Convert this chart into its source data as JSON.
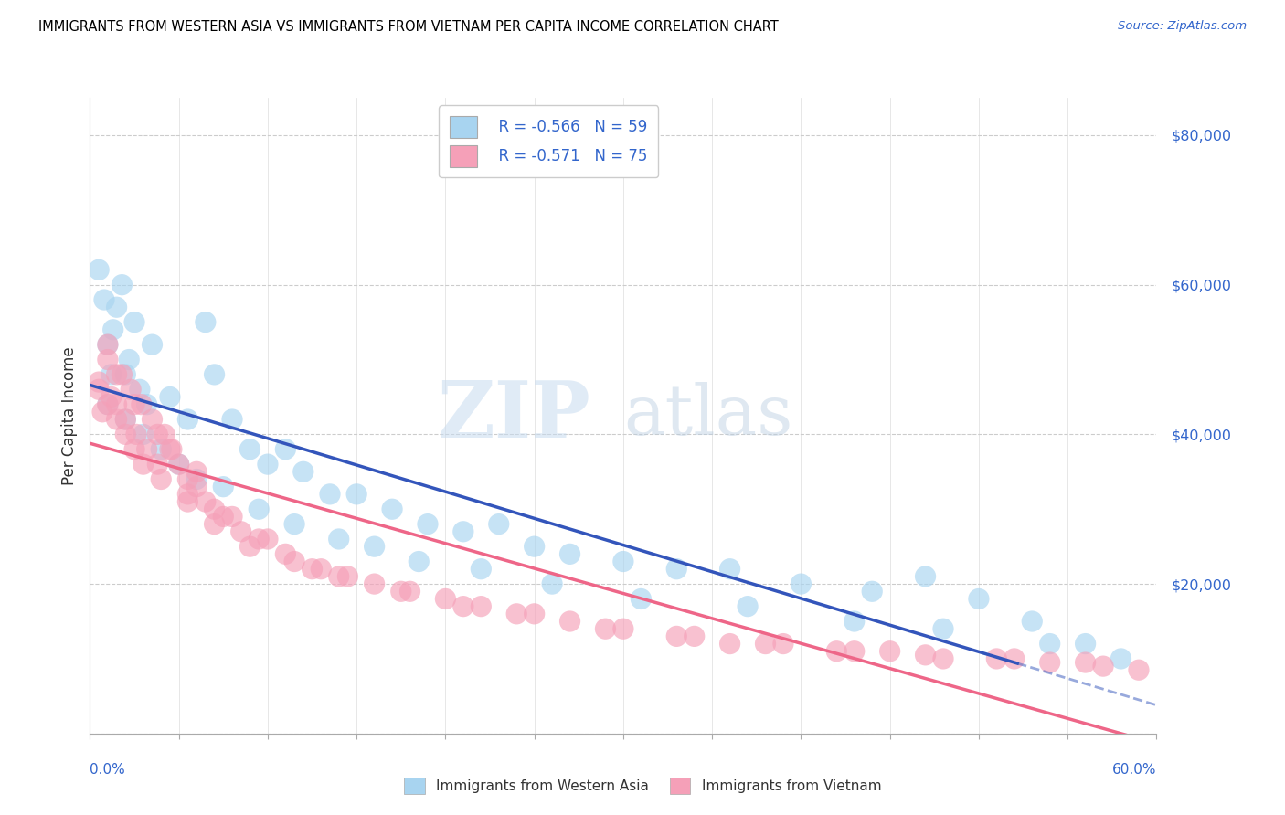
{
  "title": "IMMIGRANTS FROM WESTERN ASIA VS IMMIGRANTS FROM VIETNAM PER CAPITA INCOME CORRELATION CHART",
  "source": "Source: ZipAtlas.com",
  "ylabel": "Per Capita Income",
  "x_min": 0.0,
  "x_max": 60.0,
  "y_min": 0,
  "y_max": 85000,
  "y_ticks": [
    0,
    20000,
    40000,
    60000,
    80000
  ],
  "y_tick_labels": [
    "",
    "$20,000",
    "$40,000",
    "$60,000",
    "$80,000"
  ],
  "legend_r1": "R = -0.566",
  "legend_n1": "N = 59",
  "legend_r2": "R = -0.571",
  "legend_n2": "N = 75",
  "color_blue": "#A8D4F0",
  "color_pink": "#F5A0B8",
  "line_color_blue": "#3355BB",
  "line_color_pink": "#EE6688",
  "watermark_zip": "ZIP",
  "watermark_atlas": "atlas",
  "blue_x": [
    1.0,
    1.5,
    2.0,
    2.5,
    1.8,
    3.5,
    1.2,
    0.5,
    0.8,
    1.3,
    2.2,
    2.8,
    3.2,
    4.5,
    5.5,
    6.5,
    7.0,
    8.0,
    9.0,
    10.0,
    11.0,
    12.0,
    13.5,
    15.0,
    17.0,
    19.0,
    21.0,
    23.0,
    25.0,
    27.0,
    30.0,
    33.0,
    36.0,
    40.0,
    44.0,
    47.0,
    50.0,
    53.0,
    56.0,
    58.0,
    1.0,
    2.0,
    3.0,
    4.0,
    5.0,
    6.0,
    7.5,
    9.5,
    11.5,
    14.0,
    16.0,
    18.5,
    22.0,
    26.0,
    31.0,
    37.0,
    43.0,
    48.0,
    54.0
  ],
  "blue_y": [
    52000,
    57000,
    48000,
    55000,
    60000,
    52000,
    48000,
    62000,
    58000,
    54000,
    50000,
    46000,
    44000,
    45000,
    42000,
    55000,
    48000,
    42000,
    38000,
    36000,
    38000,
    35000,
    32000,
    32000,
    30000,
    28000,
    27000,
    28000,
    25000,
    24000,
    23000,
    22000,
    22000,
    20000,
    19000,
    21000,
    18000,
    15000,
    12000,
    10000,
    44000,
    42000,
    40000,
    38000,
    36000,
    34000,
    33000,
    30000,
    28000,
    26000,
    25000,
    23000,
    22000,
    20000,
    18000,
    17000,
    15000,
    14000,
    12000
  ],
  "pink_x": [
    0.5,
    0.7,
    1.0,
    1.2,
    1.5,
    1.8,
    2.0,
    2.3,
    2.6,
    2.9,
    3.2,
    3.5,
    3.8,
    4.2,
    4.6,
    5.0,
    5.5,
    6.0,
    6.5,
    7.0,
    7.5,
    8.5,
    9.5,
    11.0,
    12.5,
    14.0,
    16.0,
    18.0,
    20.0,
    22.0,
    24.0,
    27.0,
    30.0,
    33.0,
    36.0,
    39.0,
    42.0,
    45.0,
    48.0,
    51.0,
    54.0,
    57.0,
    59.0,
    0.5,
    1.0,
    1.5,
    2.0,
    2.5,
    3.0,
    4.0,
    5.5,
    7.0,
    9.0,
    11.5,
    14.5,
    17.5,
    21.0,
    25.0,
    29.0,
    34.0,
    38.0,
    43.0,
    47.0,
    52.0,
    56.0,
    1.0,
    1.5,
    2.5,
    3.8,
    6.0,
    4.5,
    5.5,
    8.0,
    10.0,
    13.0
  ],
  "pink_y": [
    47000,
    43000,
    50000,
    45000,
    44000,
    48000,
    42000,
    46000,
    40000,
    44000,
    38000,
    42000,
    36000,
    40000,
    38000,
    36000,
    34000,
    33000,
    31000,
    30000,
    29000,
    27000,
    26000,
    24000,
    22000,
    21000,
    20000,
    19000,
    18000,
    17000,
    16000,
    15000,
    14000,
    13000,
    12000,
    12000,
    11000,
    11000,
    10000,
    10000,
    9500,
    9000,
    8500,
    46000,
    44000,
    42000,
    40000,
    38000,
    36000,
    34000,
    31000,
    28000,
    25000,
    23000,
    21000,
    19000,
    17000,
    16000,
    14000,
    13000,
    12000,
    11000,
    10500,
    10000,
    9500,
    52000,
    48000,
    44000,
    40000,
    35000,
    38000,
    32000,
    29000,
    26000,
    22000
  ]
}
